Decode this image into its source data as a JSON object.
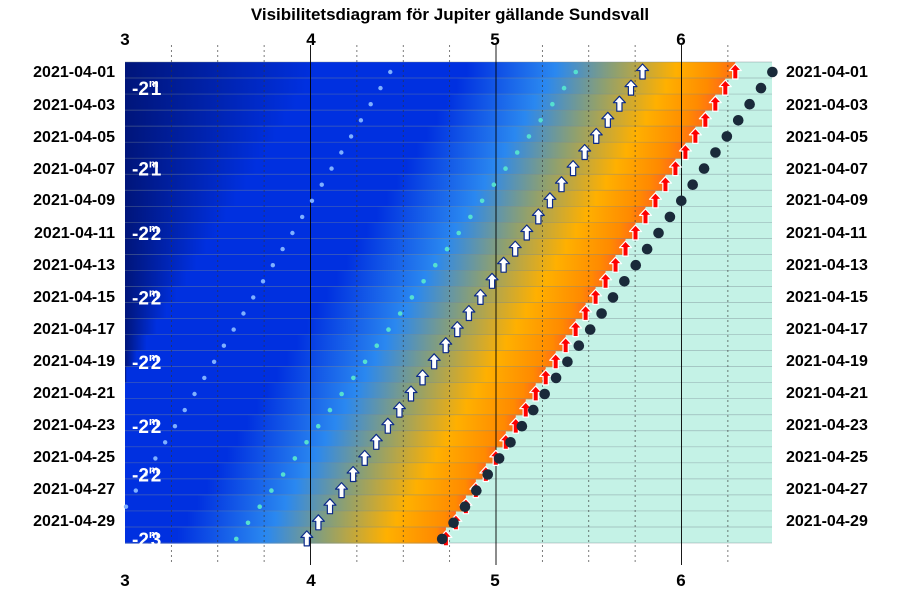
{
  "chart_data": {
    "type": "scatter",
    "title": "Visibilitetsdiagram för Jupiter gällande Sundsvall",
    "x_ticks": [
      "3",
      "4",
      "5",
      "6"
    ],
    "xlim": [
      3,
      6.5
    ],
    "dates": [
      "2021-04-01",
      "2021-04-02",
      "2021-04-03",
      "2021-04-04",
      "2021-04-05",
      "2021-04-06",
      "2021-04-07",
      "2021-04-08",
      "2021-04-09",
      "2021-04-10",
      "2021-04-11",
      "2021-04-12",
      "2021-04-13",
      "2021-04-14",
      "2021-04-15",
      "2021-04-16",
      "2021-04-17",
      "2021-04-18",
      "2021-04-19",
      "2021-04-20",
      "2021-04-21",
      "2021-04-22",
      "2021-04-23",
      "2021-04-24",
      "2021-04-25",
      "2021-04-26",
      "2021-04-27",
      "2021-04-28",
      "2021-04-29",
      "2021-04-30"
    ],
    "date_labels": [
      "2021-04-01",
      "2021-04-03",
      "2021-04-05",
      "2021-04-07",
      "2021-04-09",
      "2021-04-11",
      "2021-04-13",
      "2021-04-15",
      "2021-04-17",
      "2021-04-19",
      "2021-04-21",
      "2021-04-23",
      "2021-04-25",
      "2021-04-27",
      "2021-04-29"
    ],
    "magnitudes": [
      {
        "date": "2021-04-02",
        "value": "-2",
        "sup": "m",
        "dec": "1"
      },
      {
        "date": "2021-04-07",
        "value": "-2",
        "sup": "m",
        "dec": "1"
      },
      {
        "date": "2021-04-11",
        "value": "-2",
        "sup": "m",
        "dec": "2"
      },
      {
        "date": "2021-04-15",
        "value": "-2",
        "sup": "m",
        "dec": "2"
      },
      {
        "date": "2021-04-19",
        "value": "-2",
        "sup": "m",
        "dec": "2"
      },
      {
        "date": "2021-04-23",
        "value": "-2",
        "sup": "m",
        "dec": "2"
      },
      {
        "date": "2021-04-26",
        "value": "-2",
        "sup": "m",
        "dec": "2"
      },
      {
        "date": "2021-04-30",
        "value": "-2",
        "sup": "m",
        "dec": "3"
      }
    ],
    "series": [
      {
        "kind": "sunrise",
        "first": 6.29,
        "last": 4.73,
        "color": "#ff0000"
      },
      {
        "kind": "planet-rise",
        "first": 5.79,
        "last": 3.98,
        "color": "#ffffff"
      },
      {
        "kind": "dark-dots",
        "first": 6.49,
        "last": 4.71,
        "color": "#1a2a3a"
      },
      {
        "kind": "cyan-dots",
        "first": 5.43,
        "last": 3.6,
        "color": "#55e0d0"
      },
      {
        "kind": "light-blue-dots",
        "first": 4.43,
        "last": 2.9,
        "color": "#7fb0ff"
      }
    ],
    "colors": {
      "night_dark": "#00157a",
      "night": "#0030e0",
      "twilight_blue": "#2a88f0",
      "twilight_green": "#8ea070",
      "twilight_orange": "#ffb000",
      "dawn_orange": "#ff8a00",
      "day": "#c4f2e6"
    },
    "grid": true
  }
}
